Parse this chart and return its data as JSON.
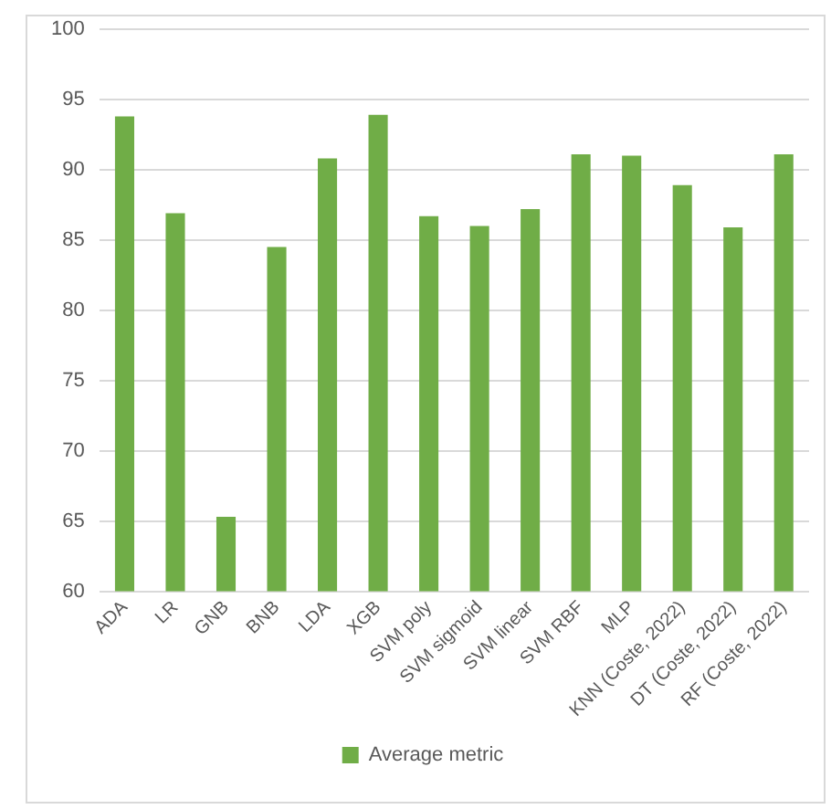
{
  "chart_data": {
    "type": "bar",
    "categories": [
      "ADA",
      "LR",
      "GNB",
      "BNB",
      "LDA",
      "XGB",
      "SVM poly",
      "SVM sigmoid",
      "SVM linear",
      "SVM RBF",
      "MLP",
      "KNN (Coste, 2022)",
      "DT (Coste, 2022)",
      "RF (Coste, 2022)"
    ],
    "series": [
      {
        "name": "Average metric",
        "color": "#70ad47",
        "values": [
          93.8,
          86.9,
          65.3,
          84.5,
          90.8,
          93.9,
          86.7,
          86.0,
          87.2,
          91.1,
          91.0,
          88.9,
          85.9,
          91.1
        ]
      }
    ],
    "ylim": [
      60,
      100
    ],
    "yticks": [
      60,
      65,
      70,
      75,
      80,
      85,
      90,
      95,
      100
    ],
    "grid": "y",
    "legend": "bottom"
  }
}
